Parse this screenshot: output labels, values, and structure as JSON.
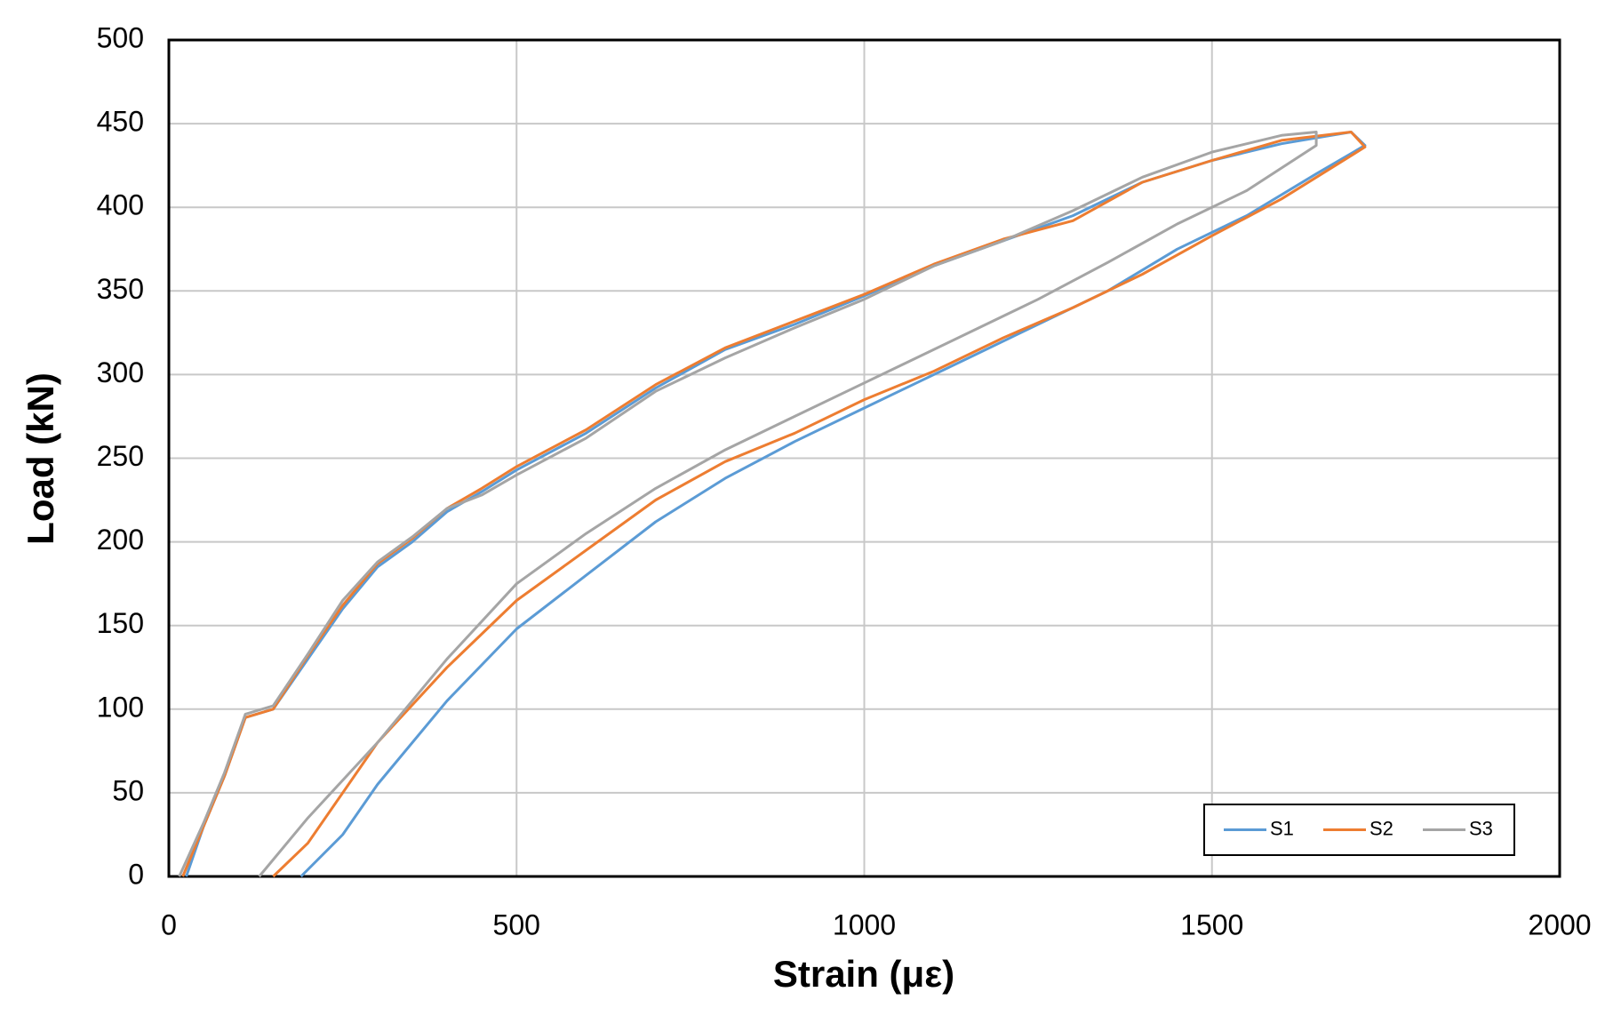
{
  "chart_data": {
    "type": "line",
    "x_label": "Strain (με)",
    "y_label": "Load (kN)",
    "xlim": [
      0,
      2000
    ],
    "xticks": [
      0,
      500,
      1000,
      1500,
      2000
    ],
    "ylim": [
      0,
      500
    ],
    "yticks": [
      0,
      50,
      100,
      150,
      200,
      250,
      300,
      350,
      400,
      450,
      500
    ],
    "grid": true,
    "legend": "lower right",
    "series": [
      {
        "name": "S1",
        "color": "#5b9bd5",
        "x": [
          25,
          50,
          80,
          110,
          150,
          200,
          250,
          300,
          350,
          400,
          450,
          500,
          600,
          700,
          800,
          900,
          1000,
          1100,
          1200,
          1300,
          1400,
          1500,
          1600,
          1700,
          1720,
          1650,
          1550,
          1450,
          1350,
          1250,
          1150,
          1000,
          900,
          800,
          700,
          600,
          500,
          400,
          300,
          250,
          190
        ],
        "values": [
          0,
          30,
          60,
          95,
          100,
          130,
          160,
          185,
          200,
          218,
          230,
          243,
          265,
          292,
          315,
          330,
          347,
          365,
          380,
          395,
          415,
          428,
          438,
          445,
          437,
          420,
          395,
          375,
          350,
          330,
          310,
          280,
          260,
          238,
          212,
          180,
          148,
          105,
          55,
          25,
          0
        ]
      },
      {
        "name": "S2",
        "color": "#ed7d31",
        "x": [
          20,
          50,
          80,
          110,
          150,
          200,
          250,
          300,
          350,
          400,
          450,
          500,
          600,
          700,
          800,
          900,
          1000,
          1100,
          1200,
          1300,
          1400,
          1500,
          1600,
          1700,
          1720,
          1600,
          1500,
          1400,
          1300,
          1200,
          1100,
          1000,
          900,
          800,
          700,
          600,
          500,
          400,
          300,
          200,
          150
        ],
        "values": [
          0,
          30,
          60,
          95,
          100,
          132,
          162,
          187,
          202,
          220,
          232,
          245,
          267,
          294,
          316,
          332,
          348,
          366,
          381,
          392,
          415,
          428,
          440,
          445,
          436,
          405,
          383,
          360,
          340,
          322,
          302,
          285,
          265,
          248,
          225,
          195,
          165,
          125,
          80,
          20,
          0
        ]
      },
      {
        "name": "S3",
        "color": "#a5a5a5",
        "x": [
          15,
          50,
          80,
          110,
          150,
          200,
          250,
          300,
          350,
          400,
          450,
          500,
          600,
          700,
          800,
          900,
          1000,
          1100,
          1200,
          1300,
          1400,
          1500,
          1600,
          1650,
          1650,
          1550,
          1450,
          1350,
          1250,
          1150,
          1000,
          900,
          800,
          700,
          600,
          500,
          400,
          300,
          200,
          130
        ],
        "values": [
          0,
          32,
          62,
          97,
          102,
          133,
          165,
          188,
          203,
          220,
          228,
          240,
          262,
          290,
          310,
          328,
          345,
          365,
          380,
          398,
          418,
          433,
          443,
          445,
          437,
          410,
          390,
          367,
          345,
          325,
          295,
          275,
          255,
          232,
          205,
          175,
          130,
          80,
          35,
          0
        ]
      }
    ]
  }
}
